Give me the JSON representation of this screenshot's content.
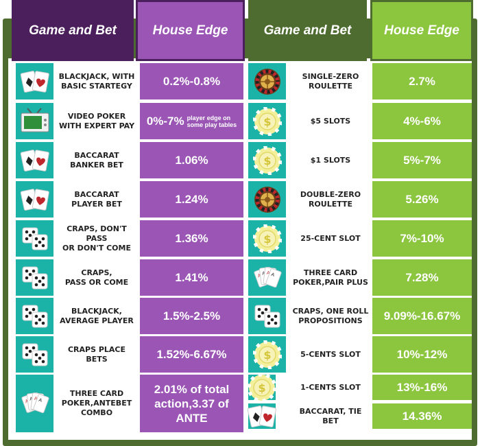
{
  "headers": {
    "left_game": "Game and Bet",
    "left_edge": "House Edge",
    "right_game": "Game and Bet",
    "right_edge": "House Edge"
  },
  "colors": {
    "frame_green": "#4f6c30",
    "left_header": "#4b1f5b",
    "left_edge": "#9a55b5",
    "right_edge": "#8cc63f",
    "icon_teal": "#1bb3a8"
  },
  "left_rows": [
    {
      "icon": "playing-cards-icon",
      "game": "BLACKJACK, WITH\nBASIC STARTEGY",
      "edge": "0.2%-0.8%"
    },
    {
      "icon": "tv-icon",
      "game": "VIDEO POKER\nWITH EXPERT PAY",
      "edge": "0%-7%",
      "note": "player edge on\nsome play tables"
    },
    {
      "icon": "playing-cards-icon",
      "game": "BACCARAT\nBANKER BET",
      "edge": "1.06%"
    },
    {
      "icon": "playing-cards-icon",
      "game": "BACCARAT\nPLAYER BET",
      "edge": "1.24%"
    },
    {
      "icon": "dice-icon",
      "game": "CRAPS, DON'T PASS\nOR DON'T COME",
      "edge": "1.36%"
    },
    {
      "icon": "dice-icon",
      "game": "CRAPS,\nPASS OR COME",
      "edge": "1.41%"
    },
    {
      "icon": "dice-icon",
      "game": "BLACKJACK,\nAVERAGE PLAYER",
      "edge": "1.5%-2.5%"
    },
    {
      "icon": "dice-icon",
      "game": "CRAPS PLACE\nBETS",
      "edge": "1.52%-6.67%"
    },
    {
      "icon": "fanned-cards-icon",
      "game": "THREE CARD\nPOKER,ANTEBET\nCOMBO",
      "edge": "2.01% of total\naction,3.37 of ANTE"
    }
  ],
  "right_rows": [
    {
      "icon": "roulette-wheel-icon",
      "game": "SINGLE-ZERO\nROULETTE",
      "edge": "2.7%"
    },
    {
      "icon": "casino-chip-icon",
      "game": "$5 SLOTS",
      "edge": "4%-6%"
    },
    {
      "icon": "casino-chip-icon",
      "game": "$1 SLOTS",
      "edge": "5%-7%"
    },
    {
      "icon": "roulette-wheel-icon",
      "game": "DOUBLE-ZERO\nROULETTE",
      "edge": "5.26%"
    },
    {
      "icon": "casino-chip-icon",
      "game": "25-CENT SLOT",
      "edge": "7%-10%"
    },
    {
      "icon": "fanned-cards-icon",
      "game": "THREE CARD\nPOKER,PAIR PLUS",
      "edge": "7.28%"
    },
    {
      "icon": "dice-icon",
      "game": "CRAPS, ONE ROLL\nPROPOSITIONS",
      "edge": "9.09%-16.67%"
    },
    {
      "icon": "casino-chip-icon",
      "game": "5-CENTS SLOT",
      "edge": "10%-12%"
    },
    {
      "icon": "casino-chip-icon",
      "game": "1-CENTS SLOT",
      "edge": "13%-16%"
    },
    {
      "icon": "playing-cards-icon",
      "game": "BACCARAT, TIE BET",
      "edge": "14.36%"
    }
  ]
}
